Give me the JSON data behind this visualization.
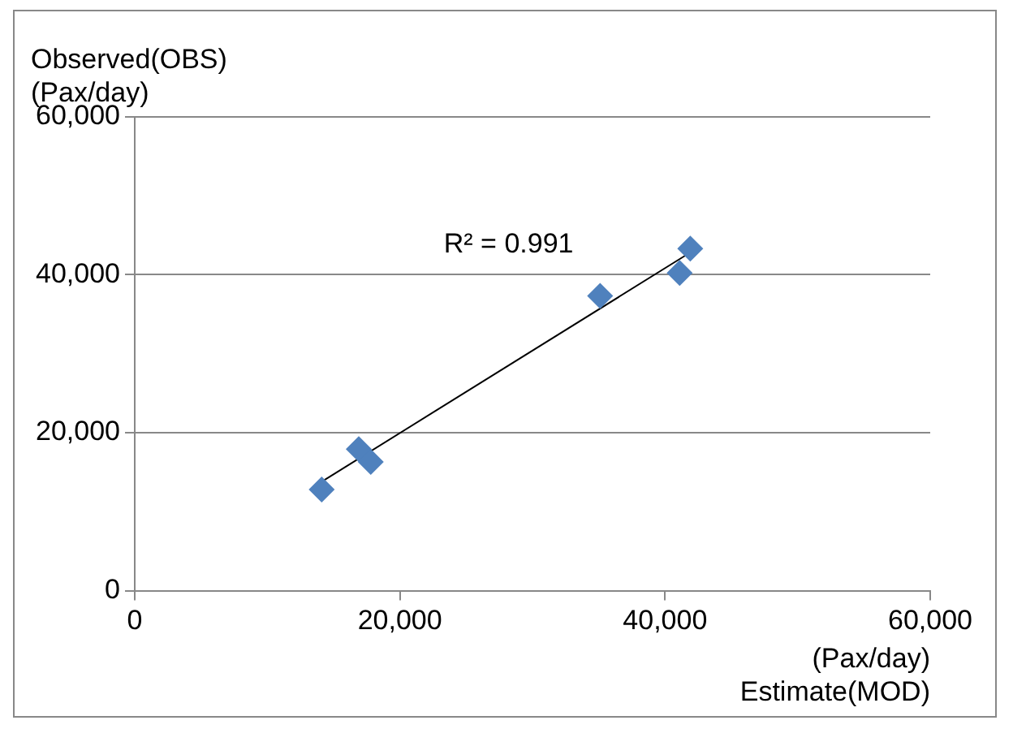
{
  "chart_data": {
    "type": "scatter",
    "xlabel": "(Pax/day)\nEstimate(MOD)",
    "ylabel": "Observed(OBS)\n(Pax/day)",
    "x": [
      14100,
      16900,
      17800,
      35100,
      41100,
      41900
    ],
    "series": [
      {
        "color": "#4f81bd",
        "values": [
          12800,
          17900,
          16300,
          37300,
          40200,
          43300
        ],
        "marker": "diamond"
      },
      {
        "type": "line",
        "color": "#000000",
        "x": [
          14100,
          41900
        ],
        "values": [
          13800,
          42800
        ],
        "marker": "none"
      }
    ],
    "annotations": [
      "R² = 0.991"
    ],
    "xlim": [
      0,
      60000
    ],
    "xticks": [
      {
        "value": 0,
        "label": "0"
      },
      {
        "value": 20000,
        "label": "20,000"
      },
      {
        "value": 40000,
        "label": "40,000"
      },
      {
        "value": 60000,
        "label": "60,000"
      }
    ],
    "ylim": [
      0,
      60000
    ],
    "yticks": [
      {
        "value": 0,
        "label": "0"
      },
      {
        "value": 20000,
        "label": "20,000"
      },
      {
        "value": 40000,
        "label": "40,000"
      },
      {
        "value": 60000,
        "label": "60,000"
      }
    ],
    "grid": "y",
    "legend": false
  }
}
